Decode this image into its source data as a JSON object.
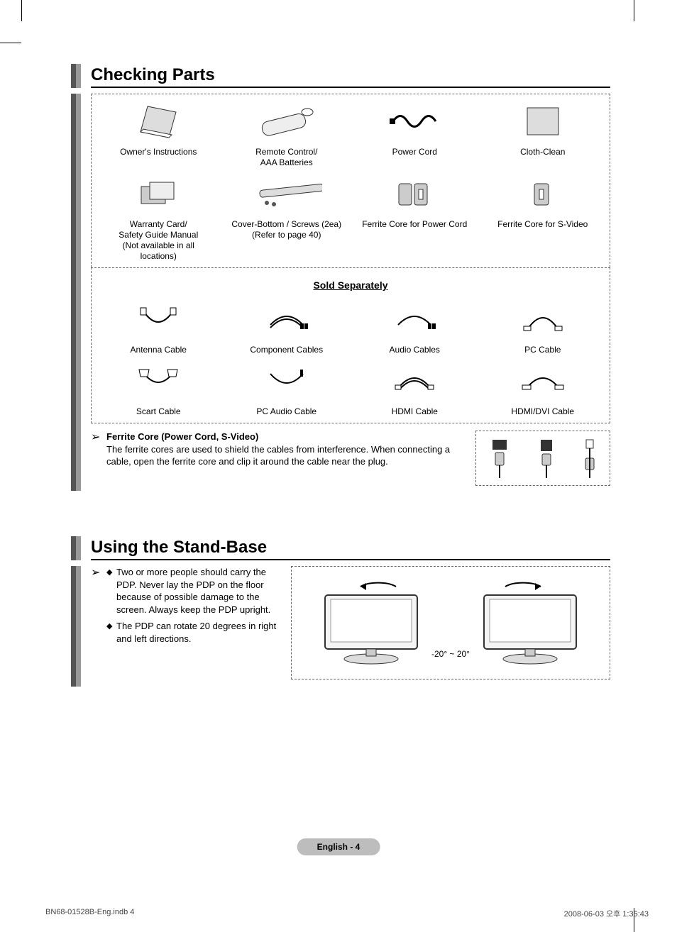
{
  "section1_title": "Checking Parts",
  "parts_row1": [
    {
      "label": "Owner's Instructions"
    },
    {
      "label": "Remote Control/\nAAA Batteries"
    },
    {
      "label": "Power Cord"
    },
    {
      "label": "Cloth-Clean"
    }
  ],
  "parts_row2": [
    {
      "label": "Warranty Card/\nSafety Guide Manual\n(Not available in all\nlocations)"
    },
    {
      "label": "Cover-Bottom / Screws (2ea)\n(Refer to page 40)"
    },
    {
      "label": "Ferrite Core for Power Cord"
    },
    {
      "label": "Ferrite Core for S-Video"
    }
  ],
  "sold_separately_title": "Sold Separately",
  "sold_row1": [
    {
      "label": "Antenna Cable"
    },
    {
      "label": "Component Cables"
    },
    {
      "label": "Audio Cables"
    },
    {
      "label": "PC Cable"
    }
  ],
  "sold_row2": [
    {
      "label": "Scart Cable"
    },
    {
      "label": "PC Audio Cable"
    },
    {
      "label": "HDMI Cable"
    },
    {
      "label": "HDMI/DVI Cable"
    }
  ],
  "ferrite_note_title": "Ferrite Core (Power Cord, S-Video)",
  "ferrite_note_body": "The ferrite cores are used to shield the cables from interference. When connecting a cable, open the ferrite core and clip it around the cable near the plug.",
  "section2_title": "Using the Stand-Base",
  "stand_bullets": [
    "Two or more people should carry the PDP. Never lay the PDP on the floor because of possible damage to the screen. Always keep the PDP upright.",
    "The PDP can rotate 20 degrees in right and left directions."
  ],
  "angle_label": "-20° ~ 20°",
  "page_label": "English - 4",
  "doc_file": "BN68-01528B-Eng.indb   4",
  "doc_timestamp": "2008-06-03   오후 1:35:43",
  "colors": {
    "dash_border": "#666666",
    "footer_bg": "#bdbdbd",
    "bar_dark": "#555555",
    "bar_light": "#999999"
  }
}
